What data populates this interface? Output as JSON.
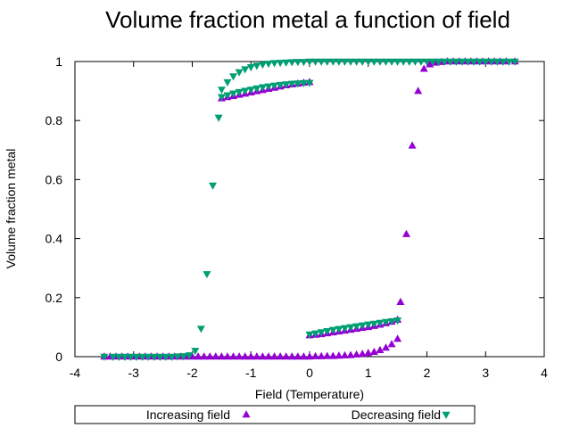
{
  "chart_data": {
    "type": "scatter",
    "title": "Volume fraction metal a function of field",
    "xlabel": "Field (Temperature)",
    "ylabel": "Volume fraction metal",
    "xlim": [
      -4,
      4
    ],
    "ylim": [
      0,
      1
    ],
    "xticks": [
      "-4",
      "-3",
      "-2",
      "-1",
      "0",
      "1",
      "2",
      "3",
      "4"
    ],
    "yticks": [
      "0",
      "0.2",
      "0.4",
      "0.6",
      "0.8",
      "1"
    ],
    "grid": false,
    "legend_position": "bottom",
    "series": [
      {
        "name": "Increasing field",
        "marker": "triangle-up",
        "color": "#9400d3",
        "points": [
          [
            -3.5,
            0
          ],
          [
            -3.4,
            0
          ],
          [
            -3.3,
            0
          ],
          [
            -3.2,
            0
          ],
          [
            -3.1,
            0
          ],
          [
            -3.0,
            0
          ],
          [
            -2.9,
            0
          ],
          [
            -2.8,
            0
          ],
          [
            -2.7,
            0
          ],
          [
            -2.6,
            0
          ],
          [
            -2.5,
            0
          ],
          [
            -2.4,
            0
          ],
          [
            -2.3,
            0
          ],
          [
            -2.2,
            0
          ],
          [
            -2.1,
            0
          ],
          [
            -2.0,
            0
          ],
          [
            -1.9,
            0
          ],
          [
            -1.8,
            0
          ],
          [
            -1.7,
            0
          ],
          [
            -1.6,
            0
          ],
          [
            -1.5,
            0
          ],
          [
            -1.4,
            0
          ],
          [
            -1.3,
            0
          ],
          [
            -1.2,
            0
          ],
          [
            -1.1,
            0
          ],
          [
            -1.0,
            0
          ],
          [
            -0.9,
            0
          ],
          [
            -0.8,
            0
          ],
          [
            -0.7,
            0
          ],
          [
            -0.6,
            0
          ],
          [
            -0.5,
            0
          ],
          [
            -0.4,
            0
          ],
          [
            -0.3,
            0
          ],
          [
            -0.2,
            0
          ],
          [
            -0.1,
            0
          ],
          [
            0.0,
            0
          ],
          [
            0.1,
            0.001
          ],
          [
            0.2,
            0.001
          ],
          [
            0.3,
            0.002
          ],
          [
            0.4,
            0.002
          ],
          [
            0.5,
            0.003
          ],
          [
            0.6,
            0.004
          ],
          [
            0.7,
            0.005
          ],
          [
            0.8,
            0.007
          ],
          [
            0.9,
            0.009
          ],
          [
            1.0,
            0.012
          ],
          [
            1.1,
            0.016
          ],
          [
            1.2,
            0.022
          ],
          [
            1.3,
            0.03
          ],
          [
            1.4,
            0.042
          ],
          [
            1.5,
            0.06
          ],
          [
            1.55,
            0.185
          ],
          [
            1.65,
            0.415
          ],
          [
            1.75,
            0.715
          ],
          [
            1.85,
            0.9
          ],
          [
            1.95,
            0.975
          ],
          [
            2.05,
            0.99
          ],
          [
            2.15,
            0.996
          ],
          [
            2.25,
            0.998
          ],
          [
            2.35,
            1
          ],
          [
            2.45,
            1
          ],
          [
            2.55,
            1
          ],
          [
            2.65,
            1
          ],
          [
            2.75,
            1
          ],
          [
            2.85,
            1
          ],
          [
            2.95,
            1
          ],
          [
            3.05,
            1
          ],
          [
            3.15,
            1
          ],
          [
            3.25,
            1
          ],
          [
            3.35,
            1
          ],
          [
            3.5,
            1
          ],
          [
            0.0,
            0.072
          ],
          [
            0.1,
            0.074
          ],
          [
            0.2,
            0.076
          ],
          [
            0.3,
            0.079
          ],
          [
            0.4,
            0.082
          ],
          [
            0.5,
            0.085
          ],
          [
            0.6,
            0.088
          ],
          [
            0.7,
            0.091
          ],
          [
            0.8,
            0.094
          ],
          [
            0.9,
            0.097
          ],
          [
            1.0,
            0.1
          ],
          [
            1.1,
            0.104
          ],
          [
            1.2,
            0.108
          ],
          [
            1.3,
            0.113
          ],
          [
            1.4,
            0.118
          ],
          [
            1.5,
            0.125
          ],
          [
            -1.5,
            0.875
          ],
          [
            -1.4,
            0.879
          ],
          [
            -1.3,
            0.883
          ],
          [
            -1.2,
            0.887
          ],
          [
            -1.1,
            0.891
          ],
          [
            -1.0,
            0.895
          ],
          [
            -0.9,
            0.899
          ],
          [
            -0.8,
            0.903
          ],
          [
            -0.7,
            0.907
          ],
          [
            -0.6,
            0.911
          ],
          [
            -0.5,
            0.915
          ],
          [
            -0.4,
            0.919
          ],
          [
            -0.3,
            0.922
          ],
          [
            -0.2,
            0.925
          ],
          [
            -0.1,
            0.928
          ],
          [
            0.0,
            0.93
          ]
        ]
      },
      {
        "name": "Decreasing field",
        "marker": "triangle-down",
        "color": "#009e73",
        "points": [
          [
            3.5,
            1
          ],
          [
            3.4,
            1
          ],
          [
            3.3,
            1
          ],
          [
            3.2,
            1
          ],
          [
            3.1,
            1
          ],
          [
            3.0,
            1
          ],
          [
            2.9,
            1
          ],
          [
            2.8,
            1
          ],
          [
            2.7,
            1
          ],
          [
            2.6,
            1
          ],
          [
            2.5,
            1
          ],
          [
            2.4,
            1
          ],
          [
            2.3,
            1
          ],
          [
            2.2,
            1
          ],
          [
            2.1,
            1
          ],
          [
            2.0,
            1
          ],
          [
            1.9,
            1
          ],
          [
            1.8,
            1
          ],
          [
            1.7,
            1
          ],
          [
            1.6,
            1
          ],
          [
            1.5,
            1
          ],
          [
            1.4,
            1
          ],
          [
            1.3,
            1
          ],
          [
            1.2,
            1
          ],
          [
            1.1,
            1
          ],
          [
            1.0,
            1
          ],
          [
            0.9,
            1
          ],
          [
            0.8,
            1
          ],
          [
            0.7,
            1
          ],
          [
            0.6,
            1
          ],
          [
            0.5,
            1
          ],
          [
            0.4,
            1
          ],
          [
            0.3,
            1
          ],
          [
            0.2,
            1
          ],
          [
            0.1,
            1
          ],
          [
            0.0,
            1
          ],
          [
            -0.1,
            0.999
          ],
          [
            -0.2,
            0.999
          ],
          [
            -0.3,
            0.998
          ],
          [
            -0.4,
            0.997
          ],
          [
            -0.5,
            0.996
          ],
          [
            -0.6,
            0.995
          ],
          [
            -0.7,
            0.993
          ],
          [
            -0.8,
            0.99
          ],
          [
            -0.9,
            0.986
          ],
          [
            -1.0,
            0.981
          ],
          [
            -1.1,
            0.974
          ],
          [
            -1.2,
            0.964
          ],
          [
            -1.3,
            0.95
          ],
          [
            -1.4,
            0.93
          ],
          [
            -1.5,
            0.905
          ],
          [
            -1.55,
            0.81
          ],
          [
            -1.65,
            0.58
          ],
          [
            -1.75,
            0.28
          ],
          [
            -1.85,
            0.095
          ],
          [
            -1.95,
            0.02
          ],
          [
            -2.05,
            0.005
          ],
          [
            -2.15,
            0.002
          ],
          [
            -2.25,
            0.001
          ],
          [
            -2.35,
            0
          ],
          [
            -2.45,
            0
          ],
          [
            -2.55,
            0
          ],
          [
            -2.65,
            0
          ],
          [
            -2.75,
            0
          ],
          [
            -2.85,
            0
          ],
          [
            -2.95,
            0
          ],
          [
            -3.05,
            0
          ],
          [
            -3.15,
            0
          ],
          [
            -3.25,
            0
          ],
          [
            -3.35,
            0
          ],
          [
            -3.5,
            0
          ],
          [
            -1.5,
            0.88
          ],
          [
            -1.4,
            0.886
          ],
          [
            -1.3,
            0.892
          ],
          [
            -1.2,
            0.897
          ],
          [
            -1.1,
            0.901
          ],
          [
            -1.0,
            0.905
          ],
          [
            -0.9,
            0.909
          ],
          [
            -0.8,
            0.913
          ],
          [
            -0.7,
            0.916
          ],
          [
            -0.6,
            0.919
          ],
          [
            -0.5,
            0.921
          ],
          [
            -0.4,
            0.923
          ],
          [
            -0.3,
            0.925
          ],
          [
            -0.2,
            0.926
          ],
          [
            -0.1,
            0.927
          ],
          [
            0.0,
            0.928
          ],
          [
            0.0,
            0.075
          ],
          [
            0.1,
            0.079
          ],
          [
            0.2,
            0.083
          ],
          [
            0.3,
            0.087
          ],
          [
            0.4,
            0.091
          ],
          [
            0.5,
            0.094
          ],
          [
            0.6,
            0.097
          ],
          [
            0.7,
            0.1
          ],
          [
            0.8,
            0.103
          ],
          [
            0.9,
            0.106
          ],
          [
            1.0,
            0.109
          ],
          [
            1.1,
            0.112
          ],
          [
            1.2,
            0.115
          ],
          [
            1.3,
            0.118
          ],
          [
            1.4,
            0.12
          ],
          [
            1.5,
            0.123
          ]
        ]
      }
    ]
  }
}
